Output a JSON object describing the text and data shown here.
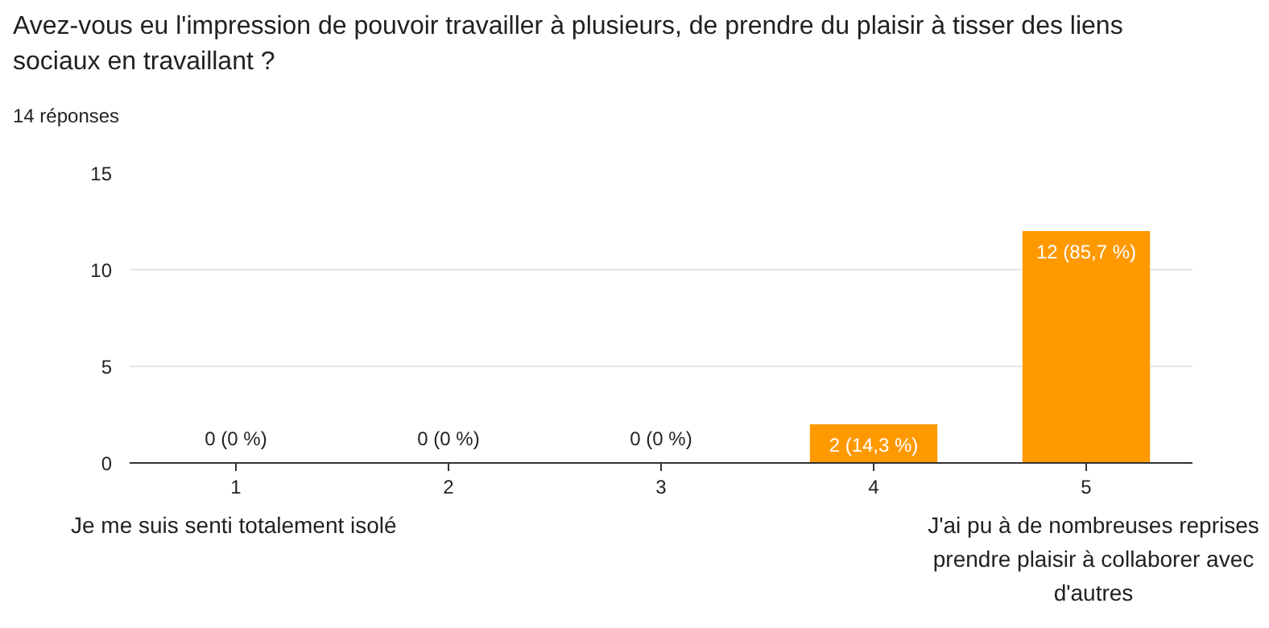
{
  "chart_data": {
    "type": "bar",
    "title": "Avez-vous eu l'impression de pouvoir travailler à plusieurs, de prendre du plaisir à tisser des liens sociaux en travaillant ?",
    "subtitle": "14 réponses",
    "categories": [
      "1",
      "2",
      "3",
      "4",
      "5"
    ],
    "values": [
      0,
      0,
      0,
      2,
      12
    ],
    "value_labels": [
      "0 (0 %)",
      "0 (0 %)",
      "0 (0 %)",
      "2 (14,3 %)",
      "12 (85,7 %)"
    ],
    "color": "#ff9900",
    "ylim": [
      0,
      15
    ],
    "yticks": [
      0,
      5,
      10,
      15
    ],
    "grid": "y",
    "annotations": [
      "Je me suis senti totalement isolé",
      "J'ai pu à de nombreuses reprises prendre plaisir à collaborer avec d'autres"
    ]
  }
}
